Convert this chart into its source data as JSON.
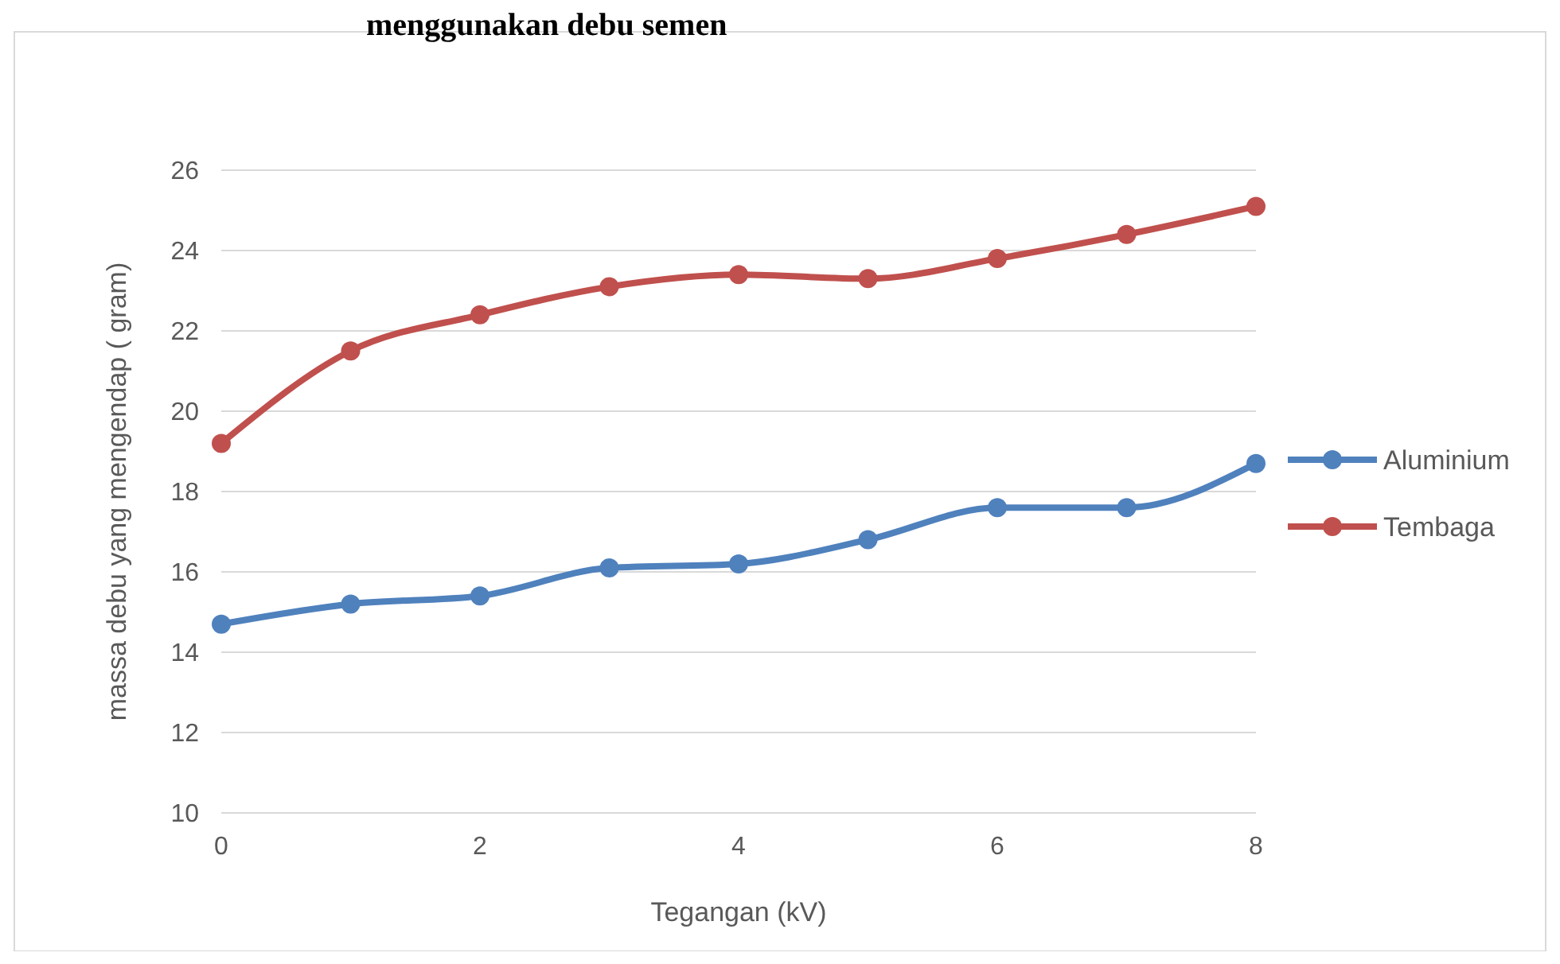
{
  "chart_data": {
    "type": "line",
    "title": "menggunakan debu semen",
    "xlabel": "Tegangan (kV)",
    "ylabel": "massa debu yang mengendap ( gram)",
    "x": [
      0,
      1,
      2,
      3,
      4,
      5,
      6,
      7,
      8
    ],
    "series": [
      {
        "name": "Aluminium",
        "color": "#4f81bd",
        "values": [
          14.7,
          15.2,
          15.4,
          16.1,
          16.2,
          16.8,
          17.6,
          17.6,
          18.7
        ]
      },
      {
        "name": "Tembaga",
        "color": "#c0504d",
        "values": [
          19.2,
          21.5,
          22.4,
          23.1,
          23.4,
          23.3,
          23.8,
          24.4,
          25.1
        ]
      }
    ],
    "xlim": [
      0,
      8
    ],
    "xticks": [
      0,
      2,
      4,
      6,
      8
    ],
    "ylim": [
      10,
      26
    ],
    "yticks": [
      10,
      12,
      14,
      16,
      18,
      20,
      22,
      24,
      26
    ],
    "grid": "y",
    "legend": "right",
    "marker": "circle",
    "line_style": "solid"
  }
}
